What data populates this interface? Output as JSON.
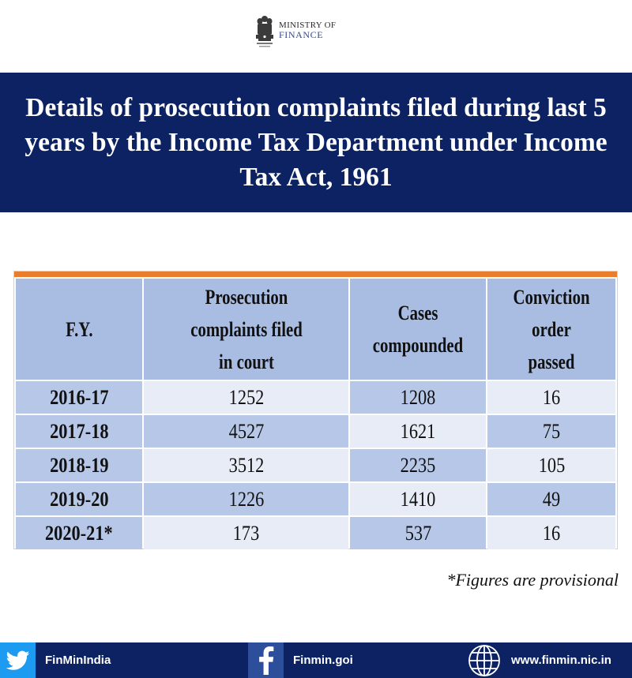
{
  "header": {
    "logo_line1": "MINISTRY OF",
    "logo_line2": "FINANCE",
    "emblem_icon": "national-emblem-icon"
  },
  "banner": {
    "title": "Details of prosecution complaints filed during last 5 years by the Income Tax Department under Income Tax Act, 1961"
  },
  "table": {
    "columns": [
      "F.Y.",
      "Prosecution complaints filed in court",
      "Cases compounded",
      "Conviction order passed"
    ],
    "rows": [
      {
        "fy": "2016-17",
        "complaints": "1252",
        "compounded": "1208",
        "conviction": "16"
      },
      {
        "fy": "2017-18",
        "complaints": "4527",
        "compounded": "1621",
        "conviction": "75"
      },
      {
        "fy": "2018-19",
        "complaints": "3512",
        "compounded": "2235",
        "conviction": "105"
      },
      {
        "fy": "2019-20",
        "complaints": "1226",
        "compounded": "1410",
        "conviction": "49"
      },
      {
        "fy": "2020-21*",
        "complaints": "173",
        "compounded": "537",
        "conviction": "16"
      }
    ]
  },
  "note": "*Figures are provisional",
  "footer": {
    "twitter": {
      "label": "FinMinIndia",
      "icon": "twitter-icon"
    },
    "facebook": {
      "label": "Finmin.goi",
      "icon": "facebook-icon"
    },
    "web": {
      "label": "www.finmin.nic.in",
      "icon": "globe-icon"
    }
  },
  "colors": {
    "banner": "#0c2262",
    "accent_bar": "#e87d2d",
    "header_cell": "#a9bde3",
    "row_light": "#e8ecf6",
    "row_mid": "#b7c7e8"
  }
}
